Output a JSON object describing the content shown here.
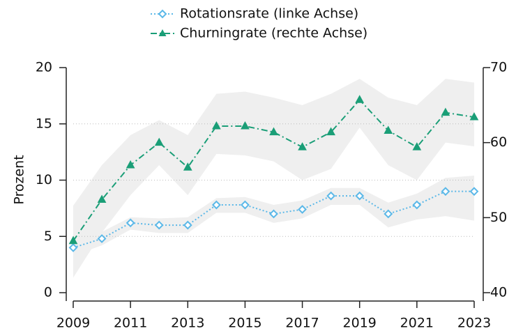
{
  "chart_data": {
    "type": "line",
    "y_label": "Prozent",
    "x": [
      2009,
      2010,
      2011,
      2012,
      2013,
      2014,
      2015,
      2016,
      2017,
      2018,
      2019,
      2020,
      2021,
      2022,
      2023
    ],
    "xlim": [
      2009,
      2023
    ],
    "xticks": [
      2009,
      2011,
      2013,
      2015,
      2017,
      2019,
      2021,
      2023
    ],
    "ylim": [
      0,
      20
    ],
    "yticks": [
      0,
      5,
      10,
      15,
      20
    ],
    "y2lim": [
      40,
      70
    ],
    "y2ticks": [
      40,
      50,
      60,
      70
    ],
    "grid": true,
    "legend": "top",
    "band_color": "#efefef",
    "series": [
      {
        "name": "Rotationsrate (linke Achse)",
        "color": "#5bb8e8",
        "axis": "y",
        "marker": "diamond",
        "dash": "2,3",
        "values": [
          4.0,
          4.8,
          6.2,
          6.0,
          6.0,
          7.8,
          7.8,
          7.0,
          7.4,
          8.6,
          8.6,
          7.0,
          7.8,
          9.0,
          9.0
        ],
        "band_lower": [
          3.3,
          4.2,
          5.6,
          5.3,
          5.3,
          7.1,
          7.1,
          6.2,
          6.6,
          7.8,
          7.8,
          5.8,
          6.5,
          6.8,
          6.4
        ],
        "band_upper": [
          4.6,
          5.4,
          6.7,
          6.6,
          6.7,
          8.4,
          8.5,
          7.8,
          8.2,
          9.3,
          9.3,
          8.0,
          8.8,
          10.2,
          10.4
        ]
      },
      {
        "name": "Churningrate (rechte Achse)",
        "color": "#1a9e77",
        "axis": "y2",
        "marker": "triangle",
        "dash": "9,4,2,4",
        "values": [
          46.9,
          52.4,
          57.0,
          60.0,
          56.7,
          62.2,
          62.2,
          61.4,
          59.4,
          61.4,
          65.7,
          61.6,
          59.4,
          64.0,
          63.4
        ],
        "band_lower": [
          42,
          48,
          53,
          57,
          53,
          58.5,
          58.3,
          57.5,
          55,
          56.5,
          62,
          57,
          55,
          60,
          59.5
        ],
        "band_upper": [
          51.6,
          57,
          61,
          63,
          61,
          66.5,
          66.8,
          66,
          65,
          66.5,
          68.5,
          66,
          65,
          68.5,
          68
        ]
      }
    ]
  }
}
